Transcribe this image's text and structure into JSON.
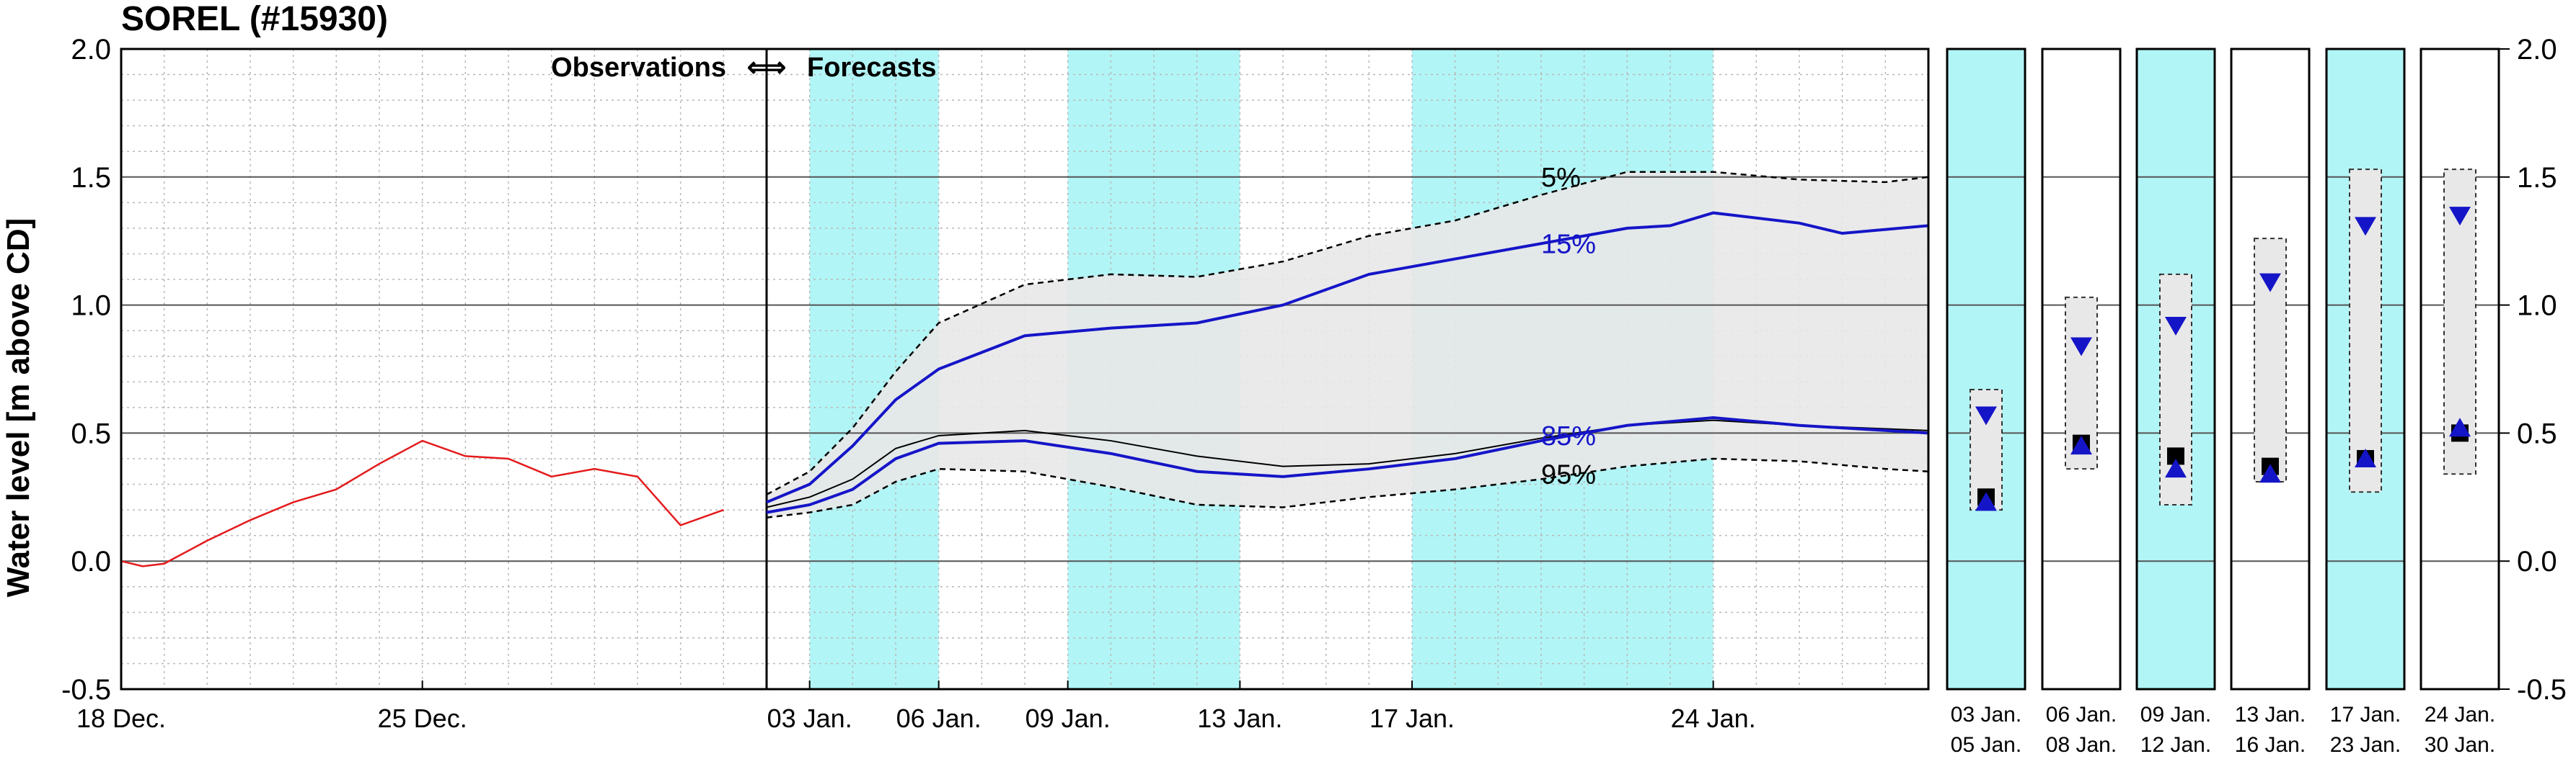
{
  "title": "SOREL (#15930)",
  "chart_data": {
    "type": "line",
    "ylabel": "Water level [m above CD]",
    "ylim": [
      -0.5,
      2.0
    ],
    "yticks": [
      "2.0",
      "1.5",
      "1.0",
      "0.5",
      "0.0",
      "-0.5"
    ],
    "grid": true,
    "divider_label_left": "Observations",
    "divider_label_right": "Forecasts",
    "divider_arrow": "⟺",
    "x_start": "2023-12-18",
    "x_end": "2024-01-29",
    "divider_date": "2024-01-02",
    "xticks": [
      {
        "date": "2023-12-18",
        "label": "18 Dec."
      },
      {
        "date": "2023-12-25",
        "label": "25 Dec."
      },
      {
        "date": "2024-01-03",
        "label": "03 Jan."
      },
      {
        "date": "2024-01-06",
        "label": "06 Jan."
      },
      {
        "date": "2024-01-09",
        "label": "09 Jan."
      },
      {
        "date": "2024-01-13",
        "label": "13 Jan."
      },
      {
        "date": "2024-01-17",
        "label": "17 Jan."
      },
      {
        "date": "2024-01-24",
        "label": "24 Jan."
      }
    ],
    "shaded_periods": [
      {
        "start": "2024-01-03",
        "end": "2024-01-06"
      },
      {
        "start": "2024-01-09",
        "end": "2024-01-13"
      },
      {
        "start": "2024-01-17",
        "end": "2024-01-24"
      }
    ],
    "observed": {
      "color": "#e41a1c",
      "points": [
        [
          "2023-12-18",
          0.0
        ],
        [
          "2023-12-18T12",
          -0.02
        ],
        [
          "2023-12-19",
          -0.01
        ],
        [
          "2023-12-20",
          0.08
        ],
        [
          "2023-12-21",
          0.16
        ],
        [
          "2023-12-22",
          0.23
        ],
        [
          "2023-12-23",
          0.28
        ],
        [
          "2023-12-24",
          0.38
        ],
        [
          "2023-12-25",
          0.47
        ],
        [
          "2023-12-26",
          0.41
        ],
        [
          "2023-12-27",
          0.4
        ],
        [
          "2023-12-28",
          0.33
        ],
        [
          "2023-12-29",
          0.36
        ],
        [
          "2023-12-30",
          0.33
        ],
        [
          "2023-12-31",
          0.14
        ],
        [
          "2024-01-01",
          0.2
        ]
      ]
    },
    "series": [
      {
        "name": "5%",
        "role": "p5",
        "color": "#000000",
        "style": "dashed",
        "points": [
          [
            "2024-01-02",
            0.26
          ],
          [
            "2024-01-03",
            0.35
          ],
          [
            "2024-01-04",
            0.52
          ],
          [
            "2024-01-05",
            0.74
          ],
          [
            "2024-01-06",
            0.93
          ],
          [
            "2024-01-08",
            1.08
          ],
          [
            "2024-01-10",
            1.12
          ],
          [
            "2024-01-12",
            1.11
          ],
          [
            "2024-01-14",
            1.17
          ],
          [
            "2024-01-16",
            1.27
          ],
          [
            "2024-01-18",
            1.33
          ],
          [
            "2024-01-20",
            1.43
          ],
          [
            "2024-01-22",
            1.52
          ],
          [
            "2024-01-24",
            1.52
          ],
          [
            "2024-01-26",
            1.49
          ],
          [
            "2024-01-28",
            1.48
          ],
          [
            "2024-01-29",
            1.5
          ]
        ]
      },
      {
        "name": "15%",
        "role": "p15",
        "color": "#1515c8",
        "style": "solid",
        "points": [
          [
            "2024-01-02",
            0.23
          ],
          [
            "2024-01-03",
            0.3
          ],
          [
            "2024-01-04",
            0.45
          ],
          [
            "2024-01-05",
            0.63
          ],
          [
            "2024-01-06",
            0.75
          ],
          [
            "2024-01-08",
            0.88
          ],
          [
            "2024-01-10",
            0.91
          ],
          [
            "2024-01-12",
            0.93
          ],
          [
            "2024-01-14",
            1.0
          ],
          [
            "2024-01-16",
            1.12
          ],
          [
            "2024-01-18",
            1.18
          ],
          [
            "2024-01-20",
            1.24
          ],
          [
            "2024-01-22",
            1.3
          ],
          [
            "2024-01-23",
            1.31
          ],
          [
            "2024-01-24",
            1.36
          ],
          [
            "2024-01-26",
            1.32
          ],
          [
            "2024-01-27",
            1.28
          ],
          [
            "2024-01-29",
            1.31
          ]
        ]
      },
      {
        "name": "median",
        "role": "median",
        "color": "#000000",
        "style": "solid-thin",
        "points": [
          [
            "2024-01-02",
            0.21
          ],
          [
            "2024-01-03",
            0.25
          ],
          [
            "2024-01-04",
            0.32
          ],
          [
            "2024-01-05",
            0.44
          ],
          [
            "2024-01-06",
            0.49
          ],
          [
            "2024-01-08",
            0.51
          ],
          [
            "2024-01-10",
            0.47
          ],
          [
            "2024-01-12",
            0.41
          ],
          [
            "2024-01-14",
            0.37
          ],
          [
            "2024-01-16",
            0.38
          ],
          [
            "2024-01-18",
            0.42
          ],
          [
            "2024-01-20",
            0.48
          ],
          [
            "2024-01-22",
            0.53
          ],
          [
            "2024-01-24",
            0.55
          ],
          [
            "2024-01-26",
            0.53
          ],
          [
            "2024-01-29",
            0.51
          ]
        ]
      },
      {
        "name": "85%",
        "role": "p85",
        "color": "#1515c8",
        "style": "solid",
        "points": [
          [
            "2024-01-02",
            0.19
          ],
          [
            "2024-01-03",
            0.22
          ],
          [
            "2024-01-04",
            0.28
          ],
          [
            "2024-01-05",
            0.4
          ],
          [
            "2024-01-06",
            0.46
          ],
          [
            "2024-01-08",
            0.47
          ],
          [
            "2024-01-10",
            0.42
          ],
          [
            "2024-01-12",
            0.35
          ],
          [
            "2024-01-14",
            0.33
          ],
          [
            "2024-01-16",
            0.36
          ],
          [
            "2024-01-18",
            0.4
          ],
          [
            "2024-01-20",
            0.47
          ],
          [
            "2024-01-22",
            0.53
          ],
          [
            "2024-01-24",
            0.56
          ],
          [
            "2024-01-26",
            0.53
          ],
          [
            "2024-01-29",
            0.5
          ]
        ]
      },
      {
        "name": "95%",
        "role": "p95",
        "color": "#000000",
        "style": "dashed",
        "points": [
          [
            "2024-01-02",
            0.17
          ],
          [
            "2024-01-03",
            0.19
          ],
          [
            "2024-01-04",
            0.22
          ],
          [
            "2024-01-05",
            0.31
          ],
          [
            "2024-01-06",
            0.36
          ],
          [
            "2024-01-08",
            0.35
          ],
          [
            "2024-01-10",
            0.29
          ],
          [
            "2024-01-12",
            0.22
          ],
          [
            "2024-01-14",
            0.21
          ],
          [
            "2024-01-16",
            0.25
          ],
          [
            "2024-01-18",
            0.28
          ],
          [
            "2024-01-20",
            0.32
          ],
          [
            "2024-01-22",
            0.37
          ],
          [
            "2024-01-24",
            0.4
          ],
          [
            "2024-01-26",
            0.39
          ],
          [
            "2024-01-28",
            0.36
          ],
          [
            "2024-01-29",
            0.35
          ]
        ]
      }
    ],
    "band_color": "#e8e8e8",
    "shade_color": "#b2f5f6",
    "percentile_labels": [
      {
        "text": "5%",
        "date": "2024-01-20",
        "y": 1.5,
        "color": "#000000"
      },
      {
        "text": "15%",
        "date": "2024-01-20",
        "y": 1.24,
        "color": "#1515c8"
      },
      {
        "text": "85%",
        "date": "2024-01-20",
        "y": 0.49,
        "color": "#1515c8"
      },
      {
        "text": "95%",
        "date": "2024-01-20",
        "y": 0.34,
        "color": "#000000"
      }
    ],
    "period_panels": [
      {
        "label1": "03 Jan.",
        "label2": "05 Jan.",
        "shaded": true,
        "low": 0.2,
        "high": 0.67,
        "median": 0.25,
        "max": 0.57,
        "min": 0.23
      },
      {
        "label1": "06 Jan.",
        "label2": "08 Jan.",
        "shaded": false,
        "low": 0.36,
        "high": 1.03,
        "median": 0.46,
        "max": 0.84,
        "min": 0.45
      },
      {
        "label1": "09 Jan.",
        "label2": "12 Jan.",
        "shaded": true,
        "low": 0.22,
        "high": 1.12,
        "median": 0.41,
        "max": 0.92,
        "min": 0.36
      },
      {
        "label1": "13 Jan.",
        "label2": "16 Jan.",
        "shaded": false,
        "low": 0.31,
        "high": 1.26,
        "median": 0.37,
        "max": 1.09,
        "min": 0.34
      },
      {
        "label1": "17 Jan.",
        "label2": "23 Jan.",
        "shaded": true,
        "low": 0.27,
        "high": 1.53,
        "median": 0.4,
        "max": 1.31,
        "min": 0.4
      },
      {
        "label1": "24 Jan.",
        "label2": "30 Jan.",
        "shaded": false,
        "low": 0.34,
        "high": 1.53,
        "median": 0.5,
        "max": 1.35,
        "min": 0.52
      }
    ]
  }
}
